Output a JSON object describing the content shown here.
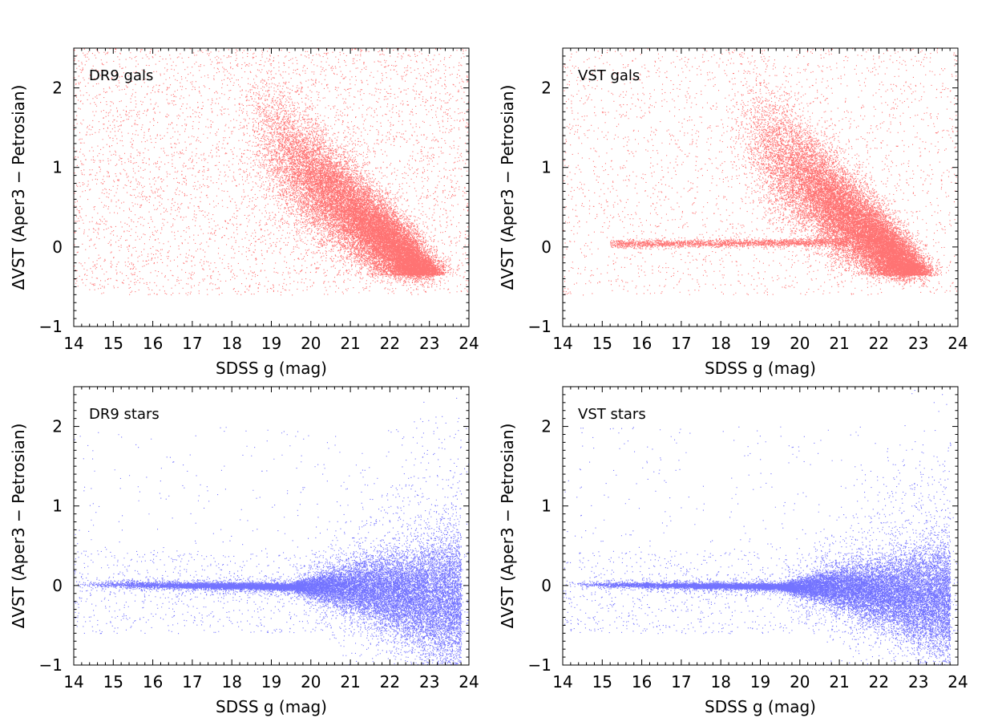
{
  "figure": {
    "colors": {
      "galaxies": "#ff0000",
      "stars": "#0000ff",
      "axes": "#000000"
    }
  },
  "chart_data": [
    {
      "type": "scatter",
      "title": "DR9 gals",
      "xlabel": "SDSS g (mag)",
      "ylabel": "ΔVST (Aper3 − Petrosian)",
      "xlim": [
        14,
        24
      ],
      "ylim": [
        -1,
        2.5
      ],
      "xticks": [
        "14",
        "15",
        "16",
        "17",
        "18",
        "19",
        "20",
        "21",
        "22",
        "23",
        "24"
      ],
      "yticks": [
        "−1",
        "0",
        "1",
        "2"
      ],
      "color": "#ff0000",
      "population": "galaxies",
      "has_star_branch": false,
      "density_description": "dense band from (19,1.2) to (22.5,-0.1), sparse halo above"
    },
    {
      "type": "scatter",
      "title": "VST gals",
      "xlabel": "SDSS g (mag)",
      "ylabel": "ΔVST (Aper3 − Petrosian)",
      "xlim": [
        14,
        24
      ],
      "ylim": [
        -1,
        2.5
      ],
      "xticks": [
        "14",
        "15",
        "16",
        "17",
        "18",
        "19",
        "20",
        "21",
        "22",
        "23",
        "24"
      ],
      "yticks": [
        "−1",
        "0",
        "1",
        "2"
      ],
      "color": "#ff0000",
      "population": "galaxies",
      "has_star_branch": true,
      "density_description": "dense band to (22.5,-0.1) plus thin horizontal branch near 0 from g=15.5 to 21"
    },
    {
      "type": "scatter",
      "title": "DR9 stars",
      "xlabel": "SDSS g (mag)",
      "ylabel": "ΔVST (Aper3 − Petrosian)",
      "xlim": [
        14,
        24
      ],
      "ylim": [
        -1,
        2.5
      ],
      "xticks": [
        "14",
        "15",
        "16",
        "17",
        "18",
        "19",
        "20",
        "21",
        "22",
        "23",
        "24"
      ],
      "yticks": [
        "−1",
        "0",
        "1",
        "2"
      ],
      "color": "#0000ff",
      "population": "stars",
      "density_description": "narrow locus at 0 widening beyond g=20, peak spread near g=22.5"
    },
    {
      "type": "scatter",
      "title": "VST stars",
      "xlabel": "SDSS g (mag)",
      "ylabel": "ΔVST (Aper3 − Petrosian)",
      "xlim": [
        14,
        24
      ],
      "ylim": [
        -1,
        2.5
      ],
      "xticks": [
        "14",
        "15",
        "16",
        "17",
        "18",
        "19",
        "20",
        "21",
        "22",
        "23",
        "24"
      ],
      "yticks": [
        "−1",
        "0",
        "1",
        "2"
      ],
      "color": "#0000ff",
      "population": "stars",
      "density_description": "narrow locus at 0 widening beyond g=20, slightly tighter than DR9"
    }
  ]
}
